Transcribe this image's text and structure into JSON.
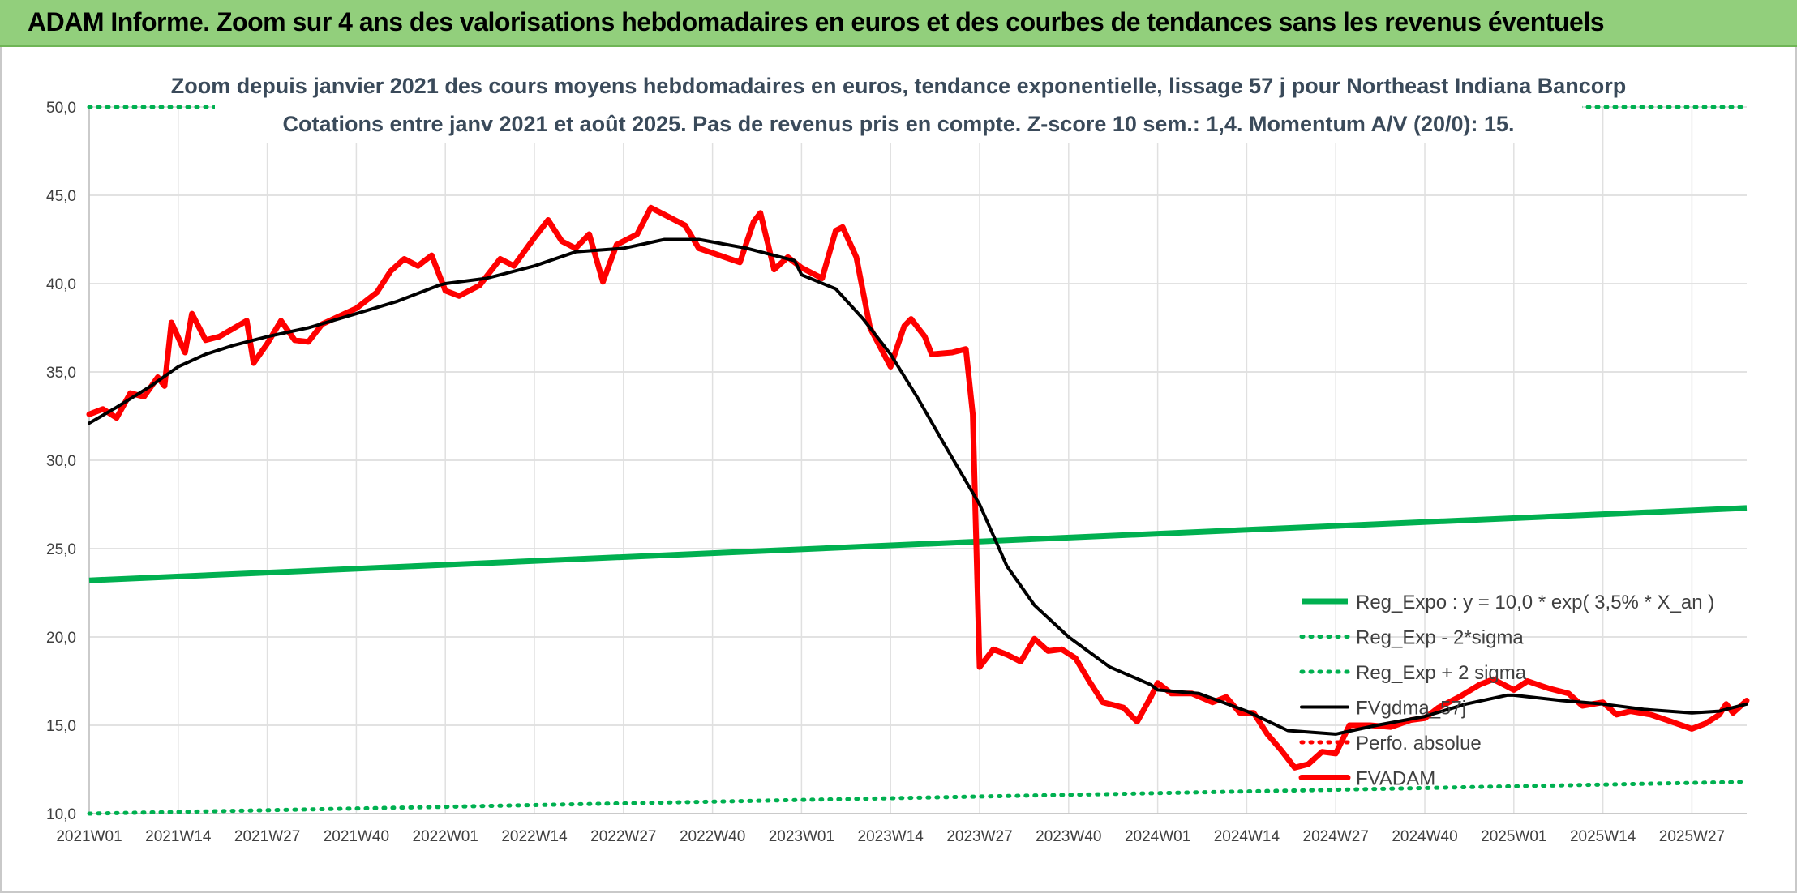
{
  "header": {
    "title": "ADAM Informe. Zoom sur 4 ans des valorisations hebdomadaires en euros et des courbes de tendances sans les revenus éventuels"
  },
  "chart_data": {
    "type": "line",
    "title": "",
    "subtitle_lines": [
      "Zoom depuis janvier 2021 des cours moyens hebdomadaires en euros, tendance exponentielle, lissage 57 j pour Northeast Indiana Bancorp",
      "Cotations entre janv 2021 et août 2025. Pas de revenus pris en compte. Z-score 10 sem.: 1,4. Momentum A/V (20/0): 15."
    ],
    "xlabel": "",
    "ylabel": "",
    "ylim": [
      10,
      50
    ],
    "yticks": [
      "10,0",
      "15,0",
      "20,0",
      "25,0",
      "30,0",
      "35,0",
      "40,0",
      "45,0",
      "50,0"
    ],
    "x_ticks": [
      "2021W01",
      "2021W14",
      "2021W27",
      "2021W40",
      "2022W01",
      "2022W14",
      "2022W27",
      "2022W40",
      "2023W01",
      "2023W14",
      "2023W27",
      "2023W40",
      "2024W01",
      "2024W14",
      "2024W27",
      "2024W40",
      "2025W01",
      "2025W14",
      "2025W27"
    ],
    "grid": true,
    "legend_position": "right",
    "colors": {
      "reg_expo": "#00b050",
      "bands": "#00b050",
      "fvgdma": "#000000",
      "perfo": "#ff0000",
      "fvadam": "#ff0000"
    },
    "series": [
      {
        "name": "Reg_Expo : y = 10,0 * exp( 3,5% *  X_an )",
        "style": "solid-thick",
        "points": [
          [
            "2021W01",
            23.2
          ],
          [
            "2025W35",
            27.3
          ]
        ]
      },
      {
        "name": "Reg_Exp - 2*sigma",
        "style": "dotted",
        "points": [
          [
            "2021W01",
            10.0
          ],
          [
            "2025W35",
            11.8
          ]
        ]
      },
      {
        "name": "Reg_Exp + 2 sigma",
        "style": "dotted",
        "points": [
          [
            "2021W01",
            50.0
          ],
          [
            "2025W35",
            50.0
          ]
        ]
      },
      {
        "name": "FVgdma_57j",
        "style": "solid",
        "points": [
          [
            "2021W01",
            32.1
          ],
          [
            "2021W05",
            33.0
          ],
          [
            "2021W10",
            34.2
          ],
          [
            "2021W14",
            35.3
          ],
          [
            "2021W18",
            36.0
          ],
          [
            "2021W22",
            36.5
          ],
          [
            "2021W27",
            37.0
          ],
          [
            "2021W33",
            37.5
          ],
          [
            "2021W40",
            38.3
          ],
          [
            "2021W46",
            39.0
          ],
          [
            "2021W52",
            39.9
          ],
          [
            "2022W01",
            40.0
          ],
          [
            "2022W07",
            40.3
          ],
          [
            "2022W14",
            41.0
          ],
          [
            "2022W20",
            41.8
          ],
          [
            "2022W27",
            42.0
          ],
          [
            "2022W33",
            42.5
          ],
          [
            "2022W38",
            42.5
          ],
          [
            "2022W45",
            42.0
          ],
          [
            "2022W52",
            41.3
          ],
          [
            "2023W01",
            40.5
          ],
          [
            "2023W06",
            39.7
          ],
          [
            "2023W10",
            38.0
          ],
          [
            "2023W14",
            36.0
          ],
          [
            "2023W18",
            33.5
          ],
          [
            "2023W22",
            30.8
          ],
          [
            "2023W27",
            27.5
          ],
          [
            "2023W31",
            24.0
          ],
          [
            "2023W35",
            21.8
          ],
          [
            "2023W40",
            20.0
          ],
          [
            "2023W46",
            18.3
          ],
          [
            "2023W52",
            17.3
          ],
          [
            "2024W01",
            17.0
          ],
          [
            "2024W07",
            16.8
          ],
          [
            "2024W14",
            15.8
          ],
          [
            "2024W20",
            14.7
          ],
          [
            "2024W27",
            14.5
          ],
          [
            "2024W33",
            15.0
          ],
          [
            "2024W40",
            15.5
          ],
          [
            "2024W46",
            16.2
          ],
          [
            "2024W52",
            16.7
          ],
          [
            "2025W01",
            16.7
          ],
          [
            "2025W08",
            16.4
          ],
          [
            "2025W14",
            16.2
          ],
          [
            "2025W20",
            15.9
          ],
          [
            "2025W27",
            15.7
          ],
          [
            "2025W31",
            15.8
          ],
          [
            "2025W35",
            16.2
          ]
        ]
      },
      {
        "name": "Perfo. absolue",
        "style": "dotted",
        "points": []
      },
      {
        "name": "FVADAM",
        "style": "solid-thick",
        "points": [
          [
            "2021W01",
            32.6
          ],
          [
            "2021W03",
            32.9
          ],
          [
            "2021W05",
            32.4
          ],
          [
            "2021W07",
            33.8
          ],
          [
            "2021W09",
            33.6
          ],
          [
            "2021W11",
            34.7
          ],
          [
            "2021W12",
            34.2
          ],
          [
            "2021W13",
            37.8
          ],
          [
            "2021W15",
            36.1
          ],
          [
            "2021W16",
            38.3
          ],
          [
            "2021W18",
            36.8
          ],
          [
            "2021W20",
            37.0
          ],
          [
            "2021W24",
            37.9
          ],
          [
            "2021W25",
            35.5
          ],
          [
            "2021W27",
            36.6
          ],
          [
            "2021W29",
            37.9
          ],
          [
            "2021W31",
            36.8
          ],
          [
            "2021W33",
            36.7
          ],
          [
            "2021W35",
            37.7
          ],
          [
            "2021W40",
            38.6
          ],
          [
            "2021W43",
            39.5
          ],
          [
            "2021W45",
            40.7
          ],
          [
            "2021W47",
            41.4
          ],
          [
            "2021W49",
            41.0
          ],
          [
            "2021W51",
            41.6
          ],
          [
            "2022W01",
            39.6
          ],
          [
            "2022W03",
            39.3
          ],
          [
            "2022W06",
            39.9
          ],
          [
            "2022W09",
            41.4
          ],
          [
            "2022W11",
            41.0
          ],
          [
            "2022W14",
            42.6
          ],
          [
            "2022W16",
            43.6
          ],
          [
            "2022W18",
            42.4
          ],
          [
            "2022W20",
            42.0
          ],
          [
            "2022W22",
            42.8
          ],
          [
            "2022W24",
            40.1
          ],
          [
            "2022W26",
            42.2
          ],
          [
            "2022W29",
            42.8
          ],
          [
            "2022W31",
            44.3
          ],
          [
            "2022W33",
            43.9
          ],
          [
            "2022W36",
            43.3
          ],
          [
            "2022W38",
            42.0
          ],
          [
            "2022W41",
            41.6
          ],
          [
            "2022W44",
            41.2
          ],
          [
            "2022W46",
            43.5
          ],
          [
            "2022W47",
            44.0
          ],
          [
            "2022W49",
            40.8
          ],
          [
            "2022W51",
            41.5
          ],
          [
            "2023W01",
            40.9
          ],
          [
            "2023W04",
            40.3
          ],
          [
            "2023W06",
            43.0
          ],
          [
            "2023W07",
            43.2
          ],
          [
            "2023W09",
            41.5
          ],
          [
            "2023W11",
            37.5
          ],
          [
            "2023W14",
            35.3
          ],
          [
            "2023W16",
            37.6
          ],
          [
            "2023W17",
            38.0
          ],
          [
            "2023W19",
            37.0
          ],
          [
            "2023W20",
            36.0
          ],
          [
            "2023W23",
            36.1
          ],
          [
            "2023W25",
            36.3
          ],
          [
            "2023W26",
            32.6
          ],
          [
            "2023W27",
            18.3
          ],
          [
            "2023W29",
            19.3
          ],
          [
            "2023W31",
            19.0
          ],
          [
            "2023W33",
            18.6
          ],
          [
            "2023W35",
            19.9
          ],
          [
            "2023W37",
            19.2
          ],
          [
            "2023W39",
            19.3
          ],
          [
            "2023W41",
            18.8
          ],
          [
            "2023W43",
            17.5
          ],
          [
            "2023W45",
            16.3
          ],
          [
            "2023W48",
            16.0
          ],
          [
            "2023W50",
            15.2
          ],
          [
            "2023W52",
            16.6
          ],
          [
            "2024W01",
            17.4
          ],
          [
            "2024W03",
            16.8
          ],
          [
            "2024W06",
            16.8
          ],
          [
            "2024W09",
            16.3
          ],
          [
            "2024W11",
            16.6
          ],
          [
            "2024W13",
            15.7
          ],
          [
            "2024W15",
            15.7
          ],
          [
            "2024W17",
            14.5
          ],
          [
            "2024W19",
            13.6
          ],
          [
            "2024W21",
            12.6
          ],
          [
            "2024W23",
            12.8
          ],
          [
            "2024W25",
            13.5
          ],
          [
            "2024W27",
            13.4
          ],
          [
            "2024W29",
            15.0
          ],
          [
            "2024W32",
            15.0
          ],
          [
            "2024W35",
            14.9
          ],
          [
            "2024W38",
            15.3
          ],
          [
            "2024W40",
            15.4
          ],
          [
            "2024W42",
            16.0
          ],
          [
            "2024W45",
            16.6
          ],
          [
            "2024W48",
            17.3
          ],
          [
            "2024W50",
            17.6
          ],
          [
            "2025W01",
            17.0
          ],
          [
            "2025W03",
            17.5
          ],
          [
            "2025W06",
            17.1
          ],
          [
            "2025W09",
            16.8
          ],
          [
            "2025W11",
            16.1
          ],
          [
            "2025W14",
            16.3
          ],
          [
            "2025W16",
            15.6
          ],
          [
            "2025W18",
            15.8
          ],
          [
            "2025W21",
            15.6
          ],
          [
            "2025W24",
            15.2
          ],
          [
            "2025W27",
            14.8
          ],
          [
            "2025W29",
            15.1
          ],
          [
            "2025W31",
            15.6
          ],
          [
            "2025W32",
            16.2
          ],
          [
            "2025W33",
            15.7
          ],
          [
            "2025W35",
            16.4
          ]
        ]
      }
    ]
  }
}
